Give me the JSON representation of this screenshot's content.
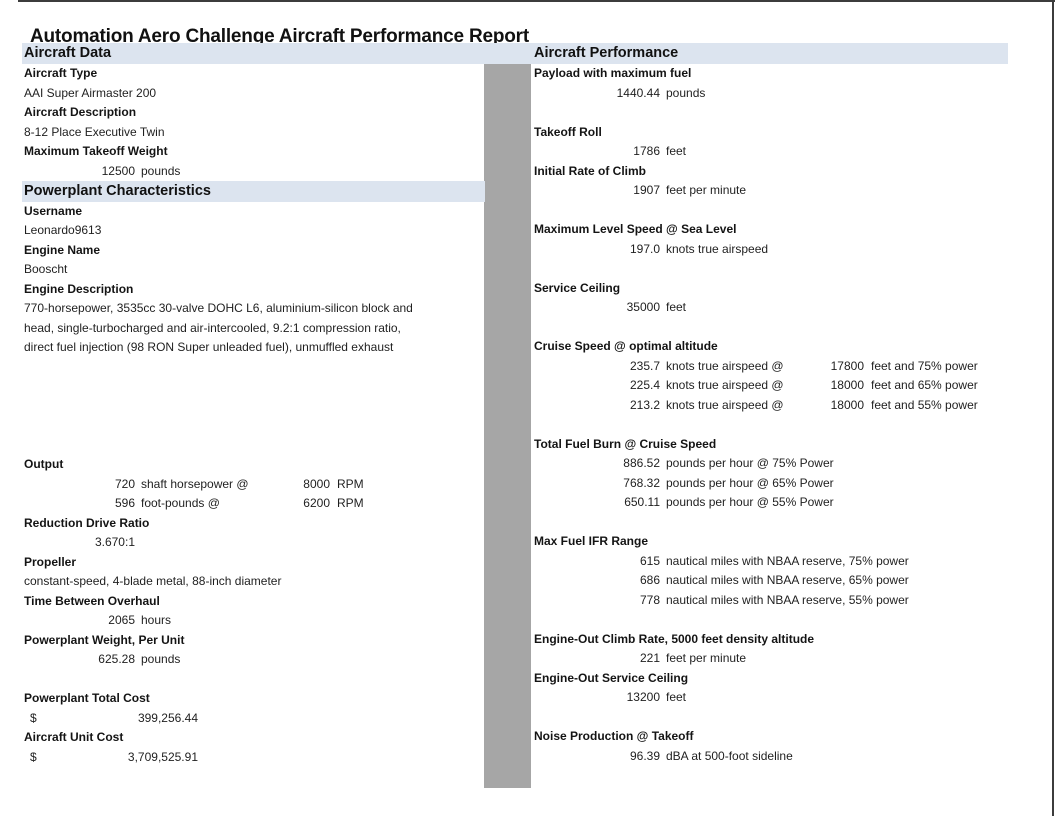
{
  "report": {
    "title": "Automation Aero Challenge Aircraft Performance Report",
    "left_header": "Aircraft Data",
    "right_header": "Aircraft Performance"
  },
  "colors": {
    "band": "#dce4ef",
    "divider": "#a6a6a6",
    "border": "#3c3c3c",
    "text": "#1f1f1f"
  },
  "left_rows": [
    {
      "t": "label",
      "text": "Aircraft Type"
    },
    {
      "t": "text",
      "text": "AAI Super Airmaster 200"
    },
    {
      "t": "label",
      "text": "Aircraft Description"
    },
    {
      "t": "text",
      "text": "8-12 Place Executive Twin"
    },
    {
      "t": "label",
      "text": "Maximum Takeoff Weight"
    },
    {
      "t": "num",
      "num": "12500",
      "unit": "pounds"
    },
    {
      "t": "section",
      "text": "Powerplant Characteristics"
    },
    {
      "t": "label",
      "text": "Username"
    },
    {
      "t": "text",
      "text": "Leonardo9613"
    },
    {
      "t": "label",
      "text": "Engine Name"
    },
    {
      "t": "text",
      "text": "Booscht"
    },
    {
      "t": "label",
      "text": "Engine Description"
    },
    {
      "t": "text",
      "text": "770-horsepower, 3535cc 30-valve DOHC L6, aluminium-silicon block and"
    },
    {
      "t": "text",
      "text": "head, single-turbocharged and air-intercooled, 9.2:1 compression ratio,"
    },
    {
      "t": "text",
      "text": "direct fuel injection (98 RON Super unleaded fuel), unmuffled exhaust"
    },
    {
      "t": "blank"
    },
    {
      "t": "blank"
    },
    {
      "t": "blank"
    },
    {
      "t": "blank"
    },
    {
      "t": "blank"
    },
    {
      "t": "label",
      "text": "Output"
    },
    {
      "t": "num2",
      "num": "720",
      "unit": "shaft horsepower @",
      "num2": "8000",
      "unit2": "RPM"
    },
    {
      "t": "num2",
      "num": "596",
      "unit": "foot-pounds @",
      "num2": "6200",
      "unit2": "RPM"
    },
    {
      "t": "label",
      "text": "Reduction Drive Ratio"
    },
    {
      "t": "num",
      "num": "3.670:1",
      "unit": ""
    },
    {
      "t": "label",
      "text": "Propeller"
    },
    {
      "t": "text",
      "text": "constant-speed, 4-blade metal, 88-inch diameter"
    },
    {
      "t": "label",
      "text": "Time Between Overhaul"
    },
    {
      "t": "num",
      "num": "2065",
      "unit": "hours"
    },
    {
      "t": "label",
      "text": "Powerplant Weight, Per Unit"
    },
    {
      "t": "num",
      "num": "625.28",
      "unit": "pounds"
    },
    {
      "t": "blank"
    },
    {
      "t": "label",
      "text": "Powerplant Total Cost"
    },
    {
      "t": "cur",
      "sym": "$",
      "amount": "399,256.44"
    },
    {
      "t": "label",
      "text": "Aircraft Unit Cost"
    },
    {
      "t": "cur",
      "sym": "$",
      "amount": "3,709,525.91"
    }
  ],
  "right_rows": [
    {
      "t": "label",
      "text": "Payload with maximum fuel"
    },
    {
      "t": "num",
      "num": "1440.44",
      "unit": "pounds"
    },
    {
      "t": "blank"
    },
    {
      "t": "label",
      "text": "Takeoff Roll"
    },
    {
      "t": "num",
      "num": "1786",
      "unit": "feet"
    },
    {
      "t": "label",
      "text": "Initial Rate of Climb"
    },
    {
      "t": "num",
      "num": "1907",
      "unit": "feet per minute"
    },
    {
      "t": "blank"
    },
    {
      "t": "label",
      "text": "Maximum Level Speed @ Sea Level"
    },
    {
      "t": "num",
      "num": "197.0",
      "unit": "knots true airspeed"
    },
    {
      "t": "blank"
    },
    {
      "t": "label",
      "text": "Service Ceiling"
    },
    {
      "t": "num",
      "num": "35000",
      "unit": "feet"
    },
    {
      "t": "blank"
    },
    {
      "t": "label",
      "text": "Cruise Speed @ optimal altitude"
    },
    {
      "t": "num2",
      "num": "235.7",
      "unit": "knots true airspeed @",
      "num2": "17800",
      "unit2": "feet and 75% power"
    },
    {
      "t": "num2",
      "num": "225.4",
      "unit": "knots true airspeed @",
      "num2": "18000",
      "unit2": "feet and 65% power"
    },
    {
      "t": "num2",
      "num": "213.2",
      "unit": "knots true airspeed @",
      "num2": "18000",
      "unit2": "feet and 55% power"
    },
    {
      "t": "blank"
    },
    {
      "t": "label",
      "text": "Total Fuel Burn @ Cruise Speed"
    },
    {
      "t": "num",
      "num": "886.52",
      "unit": "pounds per hour @ 75% Power"
    },
    {
      "t": "num",
      "num": "768.32",
      "unit": "pounds per hour @ 65% Power"
    },
    {
      "t": "num",
      "num": "650.11",
      "unit": "pounds per hour @ 55% Power"
    },
    {
      "t": "blank"
    },
    {
      "t": "label",
      "text": "Max Fuel IFR Range"
    },
    {
      "t": "num",
      "num": "615",
      "unit": "nautical miles with NBAA reserve, 75% power"
    },
    {
      "t": "num",
      "num": "686",
      "unit": "nautical miles with NBAA reserve, 65% power"
    },
    {
      "t": "num",
      "num": "778",
      "unit": "nautical miles with NBAA reserve, 55% power"
    },
    {
      "t": "blank"
    },
    {
      "t": "label",
      "text": "Engine-Out Climb Rate, 5000 feet density altitude"
    },
    {
      "t": "num",
      "num": "221",
      "unit": "feet per minute"
    },
    {
      "t": "label",
      "text": "Engine-Out Service Ceiling"
    },
    {
      "t": "num",
      "num": "13200",
      "unit": "feet"
    },
    {
      "t": "blank"
    },
    {
      "t": "label",
      "text": "Noise Production @ Takeoff"
    },
    {
      "t": "num",
      "num": "96.39",
      "unit": "dBA at 500-foot sideline"
    }
  ]
}
